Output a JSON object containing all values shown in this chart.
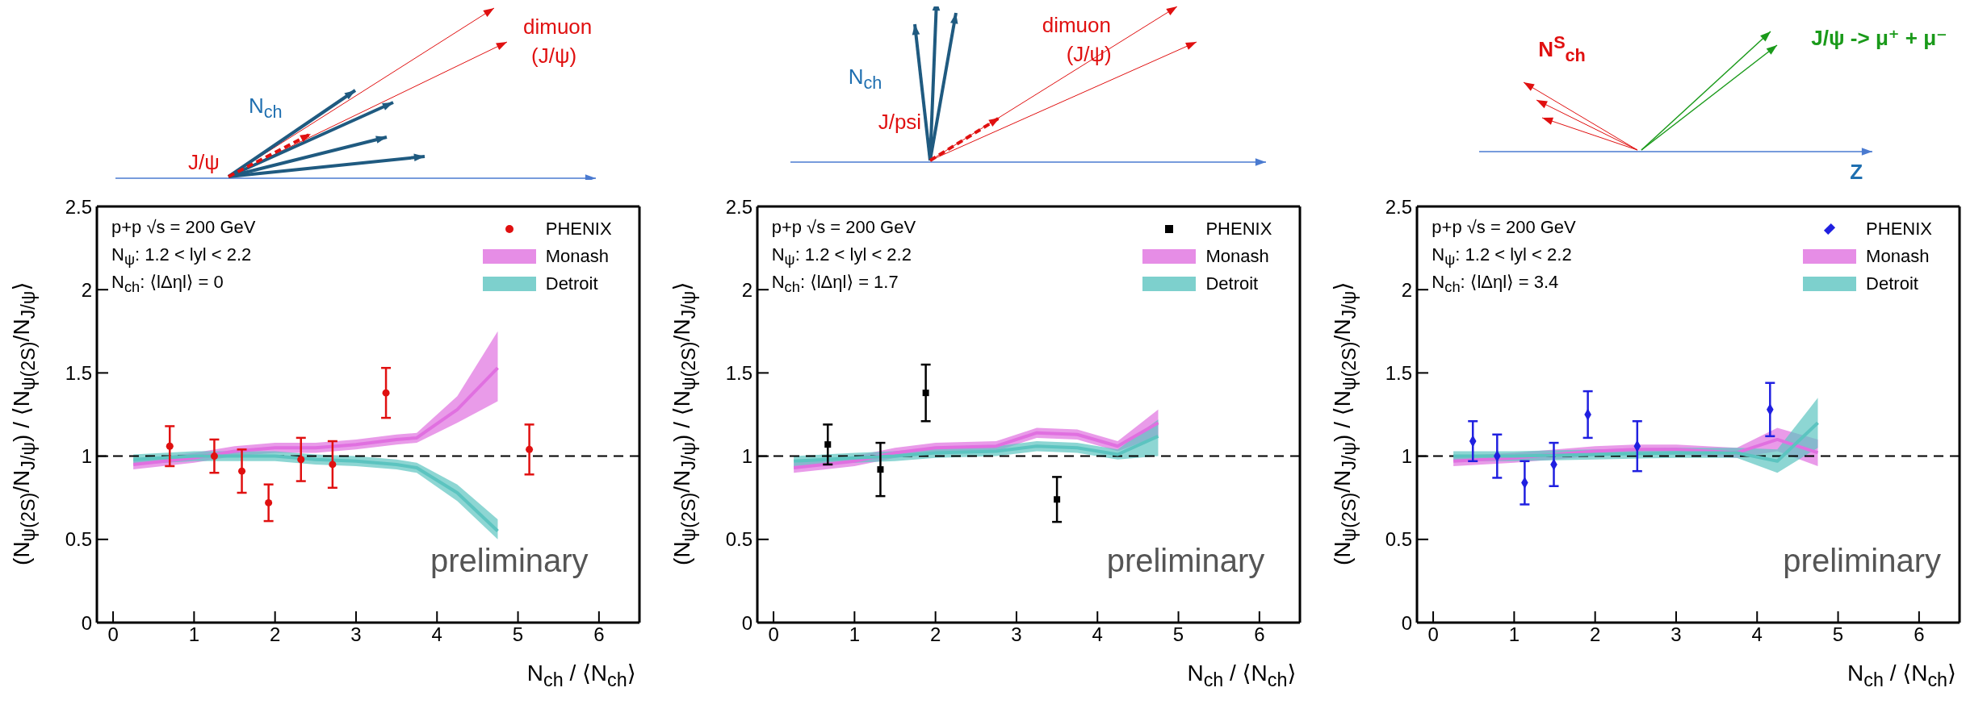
{
  "chart_data": [
    {
      "type": "scatter",
      "xlabel": "N$_{ch}$ / ⟨N$_{ch}$⟩",
      "ylabel": "(N$_{ψ(2S)}$/N$_{J/ψ}$) / ⟨N$_{ψ(2S)}$/N$_{J/ψ}$⟩",
      "xlim": [
        -0.2,
        6.5
      ],
      "xticks": [
        0,
        1,
        2,
        3,
        4,
        5,
        6
      ],
      "ylim": [
        0,
        2.5
      ],
      "yticks": [
        0,
        0.5,
        1,
        1.5,
        2,
        2.5
      ],
      "grid": false,
      "legend": "top right",
      "ref_lines": [
        {
          "axis": "y",
          "value": 1,
          "color": "#000000",
          "line_style": "dashed"
        }
      ],
      "annotations": [
        "p+p √s = 200 GeV",
        "N$_{ψ}$: 1.2 < lyl < 2.2",
        "N$_{ch}$: ⟨lΔηl⟩ = 0",
        "preliminary",
        "dimuon",
        "(J/ψ)",
        "N$_{ch}$",
        "J/ψ"
      ],
      "series": [
        {
          "name": "PHENIX",
          "marker": "circle",
          "color": "#e01010",
          "x": [
            0.7,
            1.25,
            1.59,
            1.92,
            2.32,
            2.71,
            3.37,
            5.14
          ],
          "values": [
            1.06,
            1.0,
            0.91,
            0.72,
            0.98,
            0.95,
            1.38,
            1.04
          ],
          "errors": [
            0.12,
            0.1,
            0.13,
            0.11,
            0.13,
            0.14,
            0.15,
            0.15
          ]
        },
        {
          "name": "Monash",
          "type": "line",
          "marker": "none",
          "color": "#e070e0",
          "x": [
            0.25,
            1,
            1.5,
            2,
            2.5,
            3,
            3.5,
            3.75,
            4.25,
            4.75
          ],
          "values": [
            0.95,
            0.99,
            1.03,
            1.05,
            1.05,
            1.07,
            1.1,
            1.11,
            1.28,
            1.53
          ],
          "lower": [
            0.92,
            0.96,
            1.0,
            1.02,
            1.02,
            1.04,
            1.07,
            1.08,
            1.2,
            1.33
          ],
          "upper": [
            0.98,
            1.02,
            1.06,
            1.08,
            1.08,
            1.1,
            1.13,
            1.14,
            1.36,
            1.75
          ]
        },
        {
          "name": "Detroit",
          "type": "line",
          "marker": "none",
          "color": "#5cc4c0",
          "x": [
            0.25,
            1,
            1.5,
            2,
            2.5,
            3,
            3.5,
            3.75,
            4.25,
            4.75
          ],
          "values": [
            0.98,
            1.0,
            1.0,
            1.0,
            0.98,
            0.97,
            0.95,
            0.93,
            0.78,
            0.55
          ],
          "lower": [
            0.95,
            0.97,
            0.97,
            0.97,
            0.95,
            0.94,
            0.92,
            0.9,
            0.73,
            0.5
          ],
          "upper": [
            1.01,
            1.03,
            1.03,
            1.03,
            1.01,
            1.0,
            0.98,
            0.96,
            0.83,
            0.62
          ]
        }
      ]
    },
    {
      "type": "scatter",
      "xlabel": "N$_{ch}$ / ⟨N$_{ch}$⟩",
      "ylabel": "(N$_{ψ(2S)}$/N$_{J/ψ}$) / ⟨N$_{ψ(2S)}$/N$_{J/ψ}$⟩",
      "xlim": [
        -0.2,
        6.5
      ],
      "xticks": [
        0,
        1,
        2,
        3,
        4,
        5,
        6
      ],
      "ylim": [
        0,
        2.5
      ],
      "yticks": [
        0,
        0.5,
        1,
        1.5,
        2,
        2.5
      ],
      "grid": false,
      "legend": "top right",
      "ref_lines": [
        {
          "axis": "y",
          "value": 1,
          "color": "#000000",
          "line_style": "dashed"
        }
      ],
      "annotations": [
        "p+p √s = 200 GeV",
        "N$_{ψ}$: 1.2 < lyl < 2.2",
        "N$_{ch}$: ⟨lΔηl⟩ = 1.7",
        "preliminary",
        "dimuon",
        "(J/ψ)",
        "N$_{ch}$",
        "J/psi"
      ],
      "series": [
        {
          "name": "PHENIX",
          "marker": "square",
          "color": "#000000",
          "x": [
            0.67,
            1.32,
            1.88,
            3.5
          ],
          "values": [
            1.07,
            0.92,
            1.38,
            0.74
          ],
          "errors": [
            0.12,
            0.16,
            0.17,
            0.135
          ]
        },
        {
          "name": "Monash",
          "type": "line",
          "marker": "none",
          "color": "#e070e0",
          "x": [
            0.25,
            1,
            1.5,
            2,
            2.75,
            3.25,
            3.75,
            4.25,
            4.75
          ],
          "values": [
            0.93,
            0.97,
            1.02,
            1.05,
            1.06,
            1.14,
            1.13,
            1.06,
            1.2
          ],
          "lower": [
            0.9,
            0.94,
            0.99,
            1.02,
            1.03,
            1.11,
            1.1,
            1.03,
            1.12
          ],
          "upper": [
            0.96,
            1.0,
            1.05,
            1.08,
            1.09,
            1.17,
            1.16,
            1.09,
            1.28
          ]
        },
        {
          "name": "Detroit",
          "type": "line",
          "marker": "none",
          "color": "#5cc4c0",
          "x": [
            0.25,
            1,
            1.5,
            2,
            2.75,
            3.25,
            3.75,
            4.25,
            4.75
          ],
          "values": [
            0.97,
            0.99,
            1.0,
            1.02,
            1.03,
            1.06,
            1.05,
            1.01,
            1.12
          ],
          "lower": [
            0.94,
            0.96,
            0.97,
            0.99,
            1.0,
            1.03,
            1.02,
            0.98,
            1.0
          ],
          "upper": [
            1.0,
            1.02,
            1.03,
            1.05,
            1.06,
            1.09,
            1.08,
            1.04,
            1.22
          ]
        }
      ]
    },
    {
      "type": "scatter",
      "xlabel": "N$_{ch}$ / ⟨N$_{ch}$⟩",
      "ylabel": "(N$_{ψ(2S)}$/N$_{J/ψ}$) / ⟨N$_{ψ(2S)}$/N$_{J/ψ}$⟩",
      "xlim": [
        -0.2,
        6.5
      ],
      "xticks": [
        0,
        1,
        2,
        3,
        4,
        5,
        6
      ],
      "ylim": [
        0,
        2.5
      ],
      "yticks": [
        0,
        0.5,
        1,
        1.5,
        2,
        2.5
      ],
      "grid": false,
      "legend": "top right",
      "ref_lines": [
        {
          "axis": "y",
          "value": 1,
          "color": "#000000",
          "line_style": "dashed"
        }
      ],
      "annotations": [
        "p+p √s = 200 GeV",
        "N$_{ψ}$: 1.2 < lyl < 2.2",
        "N$_{ch}$: ⟨lΔηl⟩ = 3.4",
        "preliminary",
        "N$^{S}$$_{ch}$",
        "J/ψ -> μ⁺ + μ⁻",
        "Z"
      ],
      "series": [
        {
          "name": "PHENIX",
          "marker": "diamond",
          "color": "#2020e0",
          "x": [
            0.49,
            0.79,
            1.13,
            1.49,
            1.91,
            2.52,
            4.16
          ],
          "values": [
            1.09,
            1.0,
            0.84,
            0.95,
            1.25,
            1.06,
            1.28
          ],
          "errors": [
            0.12,
            0.13,
            0.13,
            0.13,
            0.14,
            0.15,
            0.16
          ]
        },
        {
          "name": "Monash",
          "type": "line",
          "marker": "none",
          "color": "#e070e0",
          "x": [
            0.25,
            1,
            2,
            2.5,
            3,
            3.75,
            4.25,
            4.75
          ],
          "values": [
            0.97,
            0.99,
            1.03,
            1.04,
            1.04,
            1.02,
            1.1,
            1.02
          ],
          "lower": [
            0.94,
            0.96,
            1.0,
            1.01,
            1.01,
            0.99,
            1.03,
            0.94
          ],
          "upper": [
            1.0,
            1.02,
            1.06,
            1.07,
            1.07,
            1.05,
            1.17,
            1.1
          ]
        },
        {
          "name": "Detroit",
          "type": "line",
          "marker": "none",
          "color": "#5cc4c0",
          "x": [
            0.25,
            1,
            2,
            3,
            3.75,
            4.25,
            4.75
          ],
          "values": [
            1.0,
            1.0,
            1.01,
            1.02,
            1.02,
            0.97,
            1.2
          ],
          "lower": [
            0.97,
            0.97,
            0.98,
            0.99,
            0.99,
            0.9,
            1.05
          ],
          "upper": [
            1.03,
            1.03,
            1.04,
            1.05,
            1.05,
            1.04,
            1.35
          ]
        }
      ]
    }
  ]
}
